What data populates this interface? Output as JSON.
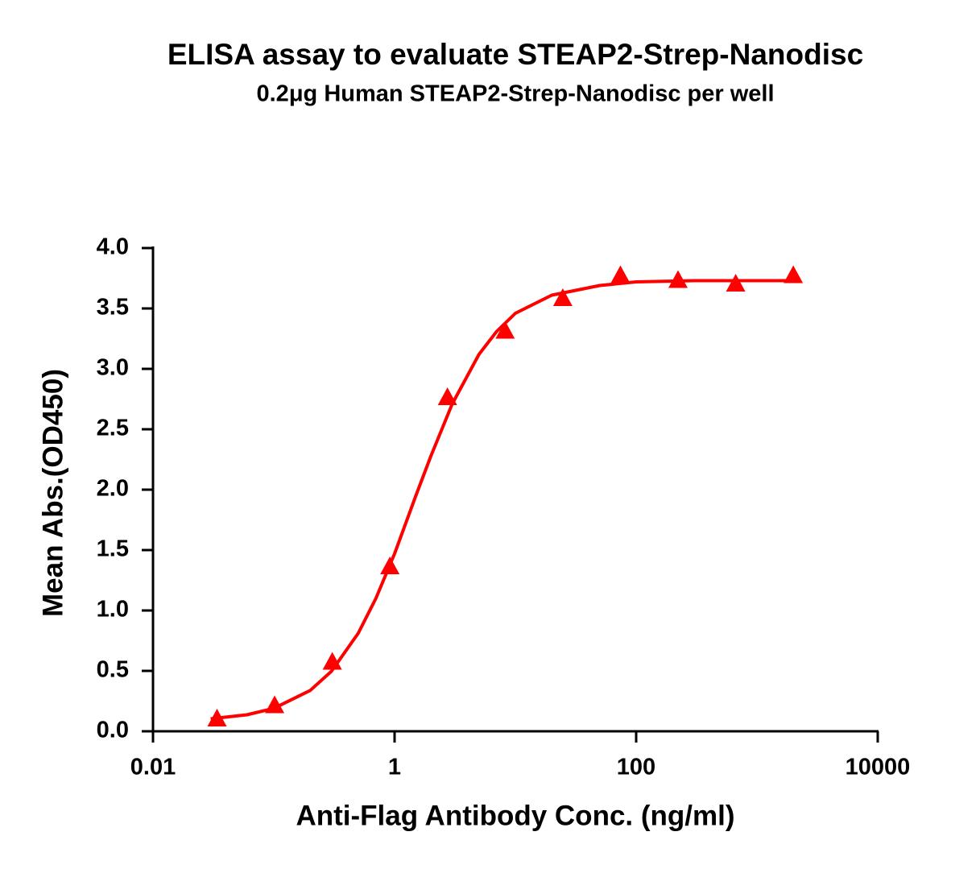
{
  "chart_data": {
    "type": "scatter",
    "title": "ELISA assay to evaluate STEAP2-Strep-Nanodisc",
    "subtitle": "0.2μg Human STEAP2-Strep-Nanodisc per well",
    "x_label": "Anti-Flag Antibody Conc. (ng/ml)",
    "y_label": "Mean Abs.(OD450)",
    "x_scale": "log",
    "xlim": [
      0.01,
      10000
    ],
    "xticks": [
      0.01,
      1,
      100,
      10000
    ],
    "ylim": [
      0,
      4
    ],
    "yticks": [
      {
        "value": 0,
        "label": "0.0"
      },
      0.5,
      {
        "value": 1,
        "label": "1.0"
      },
      1.5,
      {
        "value": 2,
        "label": "2.0"
      },
      2.5,
      {
        "value": 3,
        "label": "3.0"
      },
      3.5,
      {
        "value": 4,
        "label": "4.0"
      }
    ],
    "series": [
      {
        "color": "#ff0000",
        "marker": "triangle",
        "x": [
          0.0339,
          0.1016,
          0.305,
          0.914,
          2.74,
          8.23,
          24.69,
          74.07,
          222.2,
          666.7,
          2000
        ],
        "values": [
          0.1,
          0.21,
          0.57,
          1.36,
          2.76,
          3.31,
          3.58,
          3.77,
          3.73,
          3.7,
          3.77
        ]
      },
      {
        "color": "#ff0000",
        "marker": "line",
        "x": [
          0.03,
          0.06,
          0.1,
          0.2,
          0.3,
          0.5,
          0.7,
          1,
          1.5,
          2,
          3,
          5,
          7,
          10,
          20,
          50,
          100,
          300,
          1000,
          2000
        ],
        "values": [
          0.103,
          0.137,
          0.189,
          0.338,
          0.497,
          0.811,
          1.1,
          1.47,
          1.95,
          2.28,
          2.71,
          3.12,
          3.31,
          3.46,
          3.61,
          3.69,
          3.72,
          3.73,
          3.73,
          3.73
        ]
      }
    ]
  }
}
